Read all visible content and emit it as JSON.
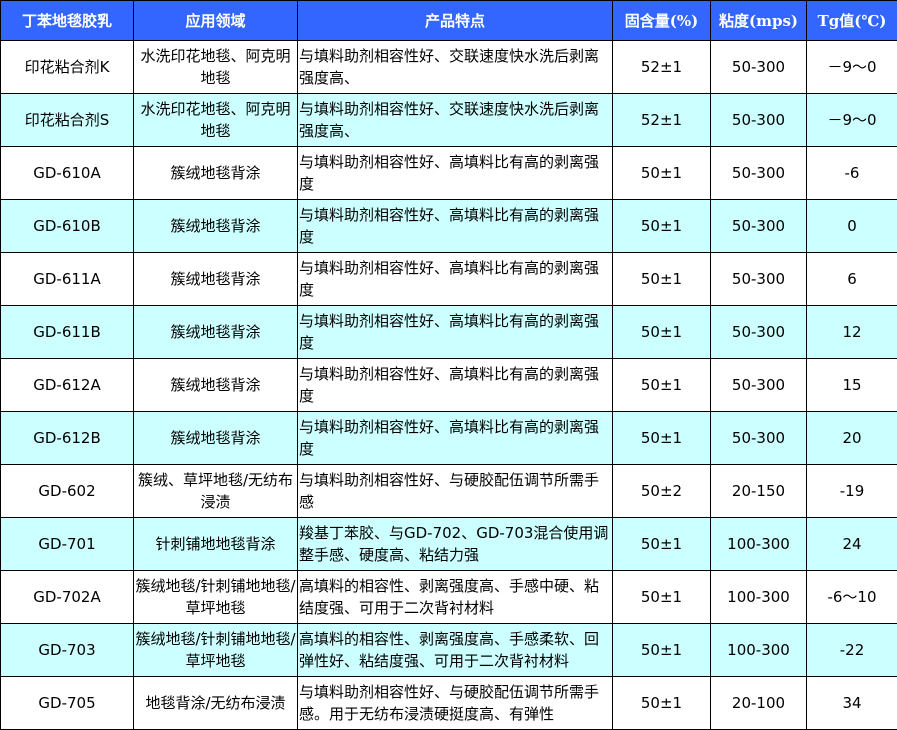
{
  "colors": {
    "header_bg": "#3366ff",
    "header_text": "#ffffff",
    "alt_row_bg": "#ccffff",
    "border": "#000000"
  },
  "headers": [
    "丁苯地毯胶乳",
    "应用领域",
    "产品特点",
    "固含量(%)",
    "粘度(mps)",
    "Tg值(℃)"
  ],
  "rows": [
    [
      "印花粘合剂K",
      "水洗印花地毯、阿克明地毯",
      "与填料助剂相容性好、交联速度快水洗后剥离强度高、",
      "52±1",
      "50-300",
      "－9～0"
    ],
    [
      "印花粘合剂S",
      "水洗印花地毯、阿克明地毯",
      "与填料助剂相容性好、交联速度快水洗后剥离强度高、",
      "52±1",
      "50-300",
      "－9～0"
    ],
    [
      "GD-610A",
      "簇绒地毯背涂",
      "与填料助剂相容性好、高填料比有高的剥离强度",
      "50±1",
      "50-300",
      "-6"
    ],
    [
      "GD-610B",
      "簇绒地毯背涂",
      "与填料助剂相容性好、高填料比有高的剥离强度",
      "50±1",
      "50-300",
      "0"
    ],
    [
      "GD-611A",
      "簇绒地毯背涂",
      "与填料助剂相容性好、高填料比有高的剥离强度",
      "50±1",
      "50-300",
      "6"
    ],
    [
      "GD-611B",
      "簇绒地毯背涂",
      "与填料助剂相容性好、高填料比有高的剥离强度",
      "50±1",
      "50-300",
      "12"
    ],
    [
      "GD-612A",
      "簇绒地毯背涂",
      "与填料助剂相容性好、高填料比有高的剥离强度",
      "50±1",
      "50-300",
      "15"
    ],
    [
      "GD-612B",
      "簇绒地毯背涂",
      "与填料助剂相容性好、高填料比有高的剥离强度",
      "50±1",
      "50-300",
      "20"
    ],
    [
      "GD-602",
      "簇绒、草坪地毯/无纺布浸渍",
      "与填料助剂相容性好、与硬胶配伍调节所需手感",
      "50±2",
      "20-150",
      "-19"
    ],
    [
      "GD-701",
      "针刺铺地地毯背涂",
      "羧基丁苯胶、与GD-702、GD-703混合使用调整手感、硬度高、粘结力强",
      "50±1",
      "100-300",
      "24"
    ],
    [
      "GD-702A",
      "簇绒地毯/针刺铺地地毯/草坪地毯",
      "高填料的相容性、剥离强度高、手感中硬、粘结度强、可用于二次背衬材料",
      "50±1",
      "100-300",
      "-6～10"
    ],
    [
      "GD-703",
      "簇绒地毯/针刺铺地地毯/草坪地毯",
      "高填料的相容性、剥离强度高、手感柔软、回弹性好、粘结度强、可用于二次背衬材料",
      "50±1",
      "100-300",
      "-22"
    ],
    [
      "GD-705",
      "地毯背涂/无纺布浸渍",
      "与填料助剂相容性好、与硬胶配伍调节所需手感。用于无纺布浸渍硬挺度高、有弹性",
      "50±1",
      "20-100",
      "34"
    ]
  ]
}
